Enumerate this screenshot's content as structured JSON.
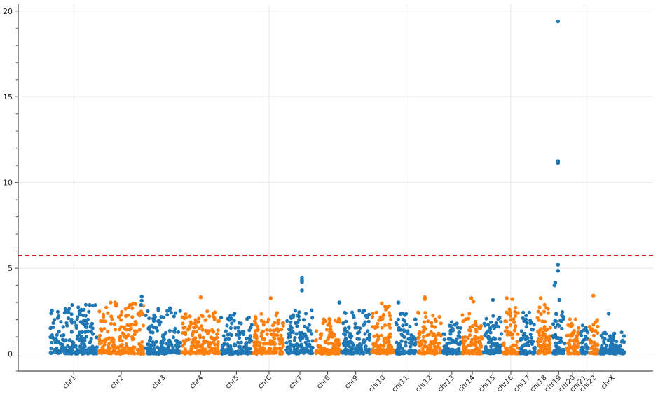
{
  "chart_data": {
    "type": "scatter",
    "title": "",
    "xlabel": "",
    "ylabel": "",
    "ylim": [
      -1.0,
      20.4
    ],
    "yticks": [
      0,
      5,
      10,
      15,
      20
    ],
    "grid": true,
    "threshold": {
      "value": 5.75,
      "color": "#e41a1c",
      "style": "dashed"
    },
    "series_colors": [
      "#1f77b4",
      "#ff7f0e"
    ],
    "chromosomes": [
      {
        "label": "chr1",
        "start": 0,
        "end": 70,
        "color": "#1f77b4",
        "ymax": 2.9
      },
      {
        "label": "chr2",
        "start": 70,
        "end": 137,
        "color": "#ff7f0e",
        "ymax": 3.0
      },
      {
        "label": "chr3",
        "start": 137,
        "end": 190,
        "color": "#1f77b4",
        "ymax": 2.6
      },
      {
        "label": "chr4",
        "start": 190,
        "end": 246,
        "color": "#ff7f0e",
        "ymax": 2.5
      },
      {
        "label": "chr5",
        "start": 246,
        "end": 293,
        "color": "#1f77b4",
        "ymax": 2.4
      },
      {
        "label": "chr6",
        "start": 293,
        "end": 340,
        "color": "#ff7f0e",
        "ymax": 2.4
      },
      {
        "label": "chr7",
        "start": 340,
        "end": 382,
        "color": "#1f77b4",
        "ymax": 2.5
      },
      {
        "label": "chr8",
        "start": 382,
        "end": 420,
        "color": "#ff7f0e",
        "ymax": 2.2
      },
      {
        "label": "chr9",
        "start": 420,
        "end": 463,
        "color": "#1f77b4",
        "ymax": 2.6
      },
      {
        "label": "chr10",
        "start": 463,
        "end": 498,
        "color": "#ff7f0e",
        "ymax": 2.8
      },
      {
        "label": "chr11",
        "start": 498,
        "end": 530,
        "color": "#1f77b4",
        "ymax": 2.3
      },
      {
        "label": "chr12",
        "start": 530,
        "end": 566,
        "color": "#ff7f0e",
        "ymax": 2.4
      },
      {
        "label": "chr13",
        "start": 566,
        "end": 594,
        "color": "#1f77b4",
        "ymax": 1.9
      },
      {
        "label": "chr14",
        "start": 594,
        "end": 625,
        "color": "#ff7f0e",
        "ymax": 2.5
      },
      {
        "label": "chr15",
        "start": 625,
        "end": 653,
        "color": "#1f77b4",
        "ymax": 2.2
      },
      {
        "label": "chr16",
        "start": 653,
        "end": 677,
        "color": "#ff7f0e",
        "ymax": 2.7
      },
      {
        "label": "chr17",
        "start": 677,
        "end": 702,
        "color": "#1f77b4",
        "ymax": 2.4
      },
      {
        "label": "chr18",
        "start": 702,
        "end": 724,
        "color": "#ff7f0e",
        "ymax": 2.8
      },
      {
        "label": "chr19",
        "start": 724,
        "end": 744,
        "color": "#1f77b4",
        "ymax": 2.7
      },
      {
        "label": "chr20",
        "start": 744,
        "end": 764,
        "color": "#ff7f0e",
        "ymax": 2.0
      },
      {
        "label": "chr21",
        "start": 764,
        "end": 777,
        "color": "#1f77b4",
        "ymax": 1.6
      },
      {
        "label": "chr22",
        "start": 777,
        "end": 792,
        "color": "#ff7f0e",
        "ymax": 2.0
      },
      {
        "label": "chrX",
        "start": 792,
        "end": 830,
        "color": "#1f77b4",
        "ymax": 1.2
      }
    ],
    "notable_points": [
      {
        "chr": "chr19",
        "pos": 733,
        "y": 19.4,
        "color": "#1f77b4"
      },
      {
        "chr": "chr19",
        "pos": 733,
        "y": 11.25,
        "color": "#1f77b4"
      },
      {
        "chr": "chr19",
        "pos": 733,
        "y": 11.15,
        "color": "#1f77b4"
      },
      {
        "chr": "chr19",
        "pos": 733,
        "y": 5.2,
        "color": "#1f77b4"
      },
      {
        "chr": "chr19",
        "pos": 733,
        "y": 4.85,
        "color": "#1f77b4"
      },
      {
        "chr": "chr19",
        "pos": 729,
        "y": 4.15,
        "color": "#1f77b4"
      },
      {
        "chr": "chr19",
        "pos": 728,
        "y": 4.0,
        "color": "#1f77b4"
      },
      {
        "chr": "chr7",
        "pos": 364,
        "y": 4.45,
        "color": "#1f77b4"
      },
      {
        "chr": "chr7",
        "pos": 364,
        "y": 4.3,
        "color": "#1f77b4"
      },
      {
        "chr": "chr7",
        "pos": 364,
        "y": 4.2,
        "color": "#1f77b4"
      },
      {
        "chr": "chr7",
        "pos": 364,
        "y": 3.7,
        "color": "#1f77b4"
      },
      {
        "chr": "chr2",
        "pos": 133,
        "y": 3.35,
        "color": "#1f77b4"
      },
      {
        "chr": "chr2",
        "pos": 133,
        "y": 3.1,
        "color": "#1f77b4"
      },
      {
        "chr": "chr2",
        "pos": 132,
        "y": 2.85,
        "color": "#1f77b4"
      },
      {
        "chr": "chr4",
        "pos": 218,
        "y": 3.3,
        "color": "#ff7f0e"
      },
      {
        "chr": "chr6",
        "pos": 319,
        "y": 3.25,
        "color": "#ff7f0e"
      },
      {
        "chr": "chr9",
        "pos": 418,
        "y": 3.0,
        "color": "#1f77b4"
      },
      {
        "chr": "chr10",
        "pos": 479,
        "y": 2.95,
        "color": "#ff7f0e"
      },
      {
        "chr": "chr11",
        "pos": 503,
        "y": 3.0,
        "color": "#1f77b4"
      },
      {
        "chr": "chr12",
        "pos": 541,
        "y": 3.3,
        "color": "#ff7f0e"
      },
      {
        "chr": "chr12",
        "pos": 541,
        "y": 3.2,
        "color": "#ff7f0e"
      },
      {
        "chr": "chr14",
        "pos": 608,
        "y": 3.25,
        "color": "#ff7f0e"
      },
      {
        "chr": "chr14",
        "pos": 611,
        "y": 3.05,
        "color": "#ff7f0e"
      },
      {
        "chr": "chr15",
        "pos": 639,
        "y": 3.15,
        "color": "#1f77b4"
      },
      {
        "chr": "chr16",
        "pos": 659,
        "y": 3.25,
        "color": "#ff7f0e"
      },
      {
        "chr": "chr16",
        "pos": 667,
        "y": 3.2,
        "color": "#ff7f0e"
      },
      {
        "chr": "chr18",
        "pos": 708,
        "y": 3.25,
        "color": "#ff7f0e"
      },
      {
        "chr": "chr19",
        "pos": 735,
        "y": 3.15,
        "color": "#1f77b4"
      },
      {
        "chr": "chr22",
        "pos": 784,
        "y": 3.4,
        "color": "#ff7f0e"
      },
      {
        "chr": "chr1",
        "pos": 58,
        "y": 2.85,
        "color": "#1f77b4"
      },
      {
        "chr": "chrX",
        "pos": 806,
        "y": 2.35,
        "color": "#1f77b4"
      }
    ]
  }
}
